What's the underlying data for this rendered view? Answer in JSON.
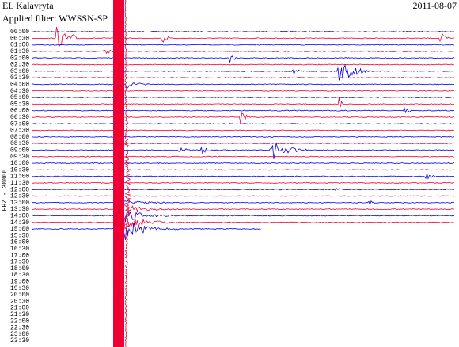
{
  "header": {
    "station": "EL Kalavryta",
    "date": "2011-08-07",
    "filter": "Applied filter: WWSSN-SP"
  },
  "y_label": "HHZ - 30000",
  "time_labels": [
    "00:00",
    "00:30",
    "01:00",
    "01:30",
    "02:00",
    "02:30",
    "03:00",
    "03:30",
    "04:00",
    "04:30",
    "05:00",
    "05:30",
    "06:00",
    "06:30",
    "07:00",
    "07:30",
    "08:00",
    "08:30",
    "09:00",
    "09:30",
    "10:00",
    "10:30",
    "11:00",
    "11:30",
    "12:00",
    "12:30",
    "13:00",
    "13:30",
    "14:00",
    "14:30",
    "15:00",
    "15:30",
    "16:00",
    "16:30",
    "17:00",
    "17:30",
    "18:00",
    "18:30",
    "19:00",
    "19:30",
    "20:00",
    "20:30",
    "21:00",
    "21:30",
    "22:00",
    "22:30",
    "23:00",
    "23:30"
  ],
  "trace_colors": [
    "#0000ee",
    "#ee0033"
  ]
}
